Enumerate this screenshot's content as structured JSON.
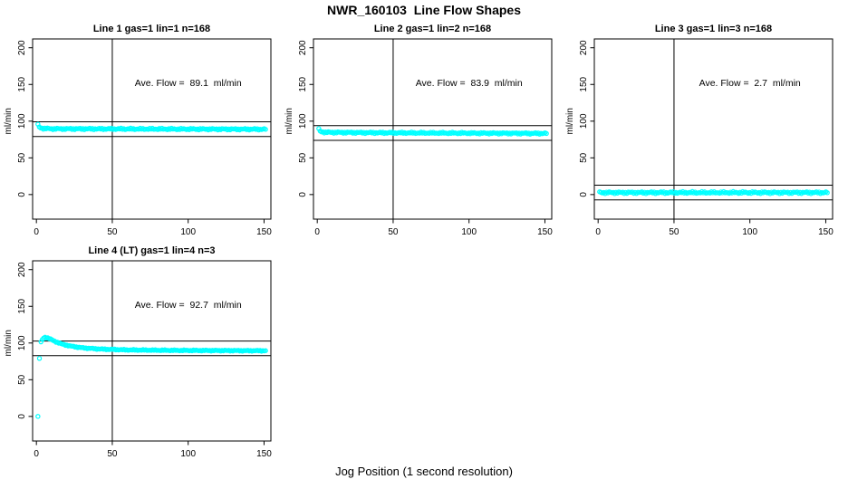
{
  "figure": {
    "title": "NWR_160103  Line Flow Shapes",
    "xlabel": "Jog Position (1 second resolution)",
    "background": "#ffffff",
    "point_color": "#00FFFF",
    "line_color": "#000000"
  },
  "axes": {
    "x_ticks": [
      0,
      50,
      100,
      150
    ],
    "y_ticks": [
      0,
      50,
      100,
      150,
      200
    ],
    "ylabel": "ml/min",
    "xlim": [
      -2.5,
      154.5
    ],
    "ylim": [
      -33.5,
      212
    ],
    "grid": false
  },
  "chart_data": [
    {
      "type": "scatter",
      "title": "Line 1 gas=1 lin=1 n=168",
      "n": 168,
      "samples": 168,
      "ave_flow": 89.1,
      "annotation": "Ave. Flow =  89.1  ml/min",
      "annotation_xy": [
        100,
        152
      ],
      "ref_lines": [
        99.1,
        79.1
      ],
      "vline_x": 50,
      "x_range": [
        1,
        151
      ],
      "jitter": 1.2,
      "extra_points": [],
      "profile": [
        [
          1,
          95
        ],
        [
          2,
          91.5
        ],
        [
          4,
          90.2
        ],
        [
          10,
          89.6
        ],
        [
          151,
          89.0
        ]
      ]
    },
    {
      "type": "scatter",
      "title": "Line 2 gas=1 lin=2 n=168",
      "n": 168,
      "samples": 168,
      "ave_flow": 83.9,
      "annotation": "Ave. Flow =  83.9  ml/min",
      "annotation_xy": [
        100,
        152
      ],
      "ref_lines": [
        93.9,
        73.9
      ],
      "vline_x": 50,
      "x_range": [
        1,
        151
      ],
      "jitter": 1.2,
      "extra_points": [],
      "profile": [
        [
          1,
          89
        ],
        [
          2,
          86
        ],
        [
          5,
          84.8
        ],
        [
          40,
          84.2
        ],
        [
          151,
          83.3
        ]
      ]
    },
    {
      "type": "scatter",
      "title": "Line 3 gas=1 lin=3 n=168",
      "n": 168,
      "samples": 168,
      "ave_flow": 2.7,
      "annotation": "Ave. Flow =  2.7  ml/min",
      "annotation_xy": [
        100,
        152
      ],
      "ref_lines": [
        12.7,
        -7.3
      ],
      "vline_x": 50,
      "x_range": [
        1,
        151
      ],
      "jitter": 1.5,
      "extra_points": [],
      "profile": [
        [
          1,
          2.7
        ],
        [
          151,
          2.7
        ]
      ]
    },
    {
      "type": "scatter",
      "title": "Line 4 (LT) gas=1 lin=4 n=3",
      "n": 3,
      "samples": 166,
      "ave_flow": 92.7,
      "annotation": "Ave. Flow =  92.7  ml/min",
      "annotation_xy": [
        100,
        152
      ],
      "ref_lines": [
        102.7,
        82.7
      ],
      "vline_x": 50,
      "x_range": [
        3,
        151
      ],
      "jitter": 0.8,
      "extra_points": [
        [
          1,
          0
        ],
        [
          2,
          79
        ]
      ],
      "profile": [
        [
          3,
          101
        ],
        [
          4,
          105
        ],
        [
          5,
          107.5
        ],
        [
          6,
          108
        ],
        [
          7,
          107.2
        ],
        [
          9,
          105.5
        ],
        [
          12,
          102.5
        ],
        [
          16,
          99
        ],
        [
          22,
          96
        ],
        [
          30,
          93.5
        ],
        [
          42,
          91.8
        ],
        [
          60,
          90.6
        ],
        [
          90,
          90
        ],
        [
          151,
          89.5
        ]
      ]
    }
  ]
}
